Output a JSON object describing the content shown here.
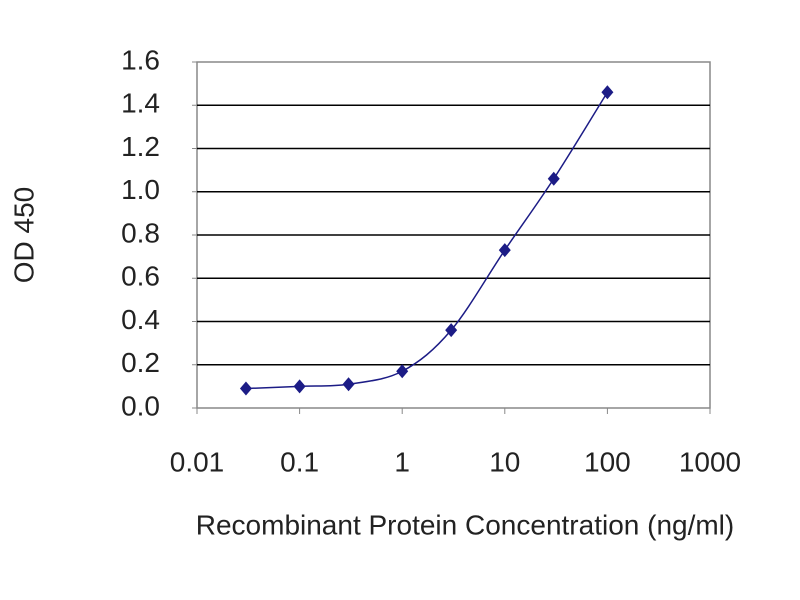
{
  "chart_data": {
    "type": "line",
    "x": [
      0.03,
      0.1,
      0.3,
      1,
      3,
      10,
      30,
      100
    ],
    "values": [
      0.09,
      0.1,
      0.11,
      0.17,
      0.36,
      0.73,
      1.06,
      1.46
    ],
    "color": "#1c1c86",
    "xscale": "log",
    "xlim": [
      0.01,
      1000
    ],
    "xticks": [
      0.01,
      0.1,
      1,
      10,
      100,
      1000
    ],
    "ylim": [
      0,
      1.6
    ],
    "yticks": [
      {
        "value": 0,
        "label": "0.0"
      },
      0.2,
      0.4,
      0.6,
      0.8,
      {
        "value": 1,
        "label": "1.0"
      },
      1.2,
      1.4,
      1.6
    ],
    "grid": true,
    "xlabel": "Recombinant Protein Concentration (ng/ml)",
    "ylabel": "OD 450"
  }
}
